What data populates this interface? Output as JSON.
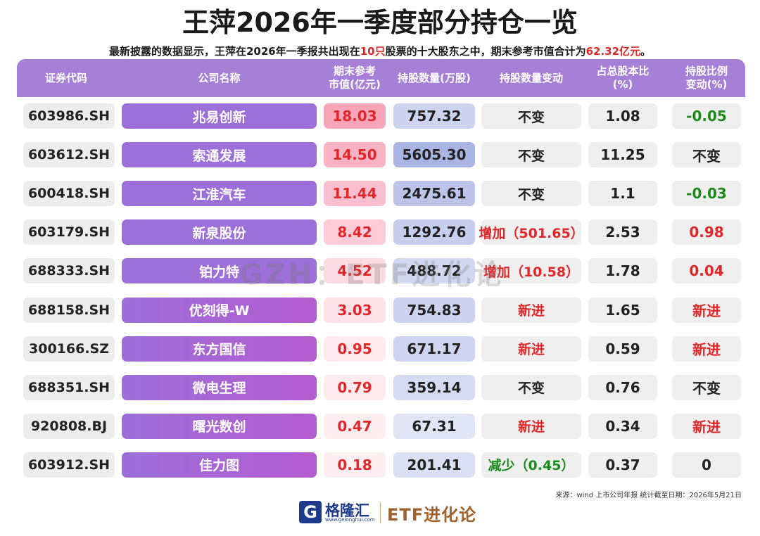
{
  "title": "王萍2026年一季度部分持仓一览",
  "subtitle": {
    "part1": "最新披露的数据显示，王萍在2026年一季报共出现在",
    "count": "10只",
    "part2": "股票的十大股东之中，期末参考市值合计为",
    "total": "62.32亿元",
    "part3": "。"
  },
  "columns": {
    "code": "证券代码",
    "name": "公司名称",
    "value": "期末参考\n市值(亿元)",
    "shares": "持股数量(万股)",
    "shares_change": "持股数量变动",
    "pct": "占总股本比\n(%)",
    "pct_change": "持股比例\n变动(%)"
  },
  "rows": [
    {
      "code": "603986.SH",
      "name": "兆易创新",
      "value": "18.03",
      "shares": "757.32",
      "shares_change": "不变",
      "pct": "1.08",
      "pct_change": "-0.05"
    },
    {
      "code": "603612.SH",
      "name": "索通发展",
      "value": "14.50",
      "shares": "5605.30",
      "shares_change": "不变",
      "pct": "11.25",
      "pct_change": "不变"
    },
    {
      "code": "600418.SH",
      "name": "江淮汽车",
      "value": "11.44",
      "shares": "2475.61",
      "shares_change": "不变",
      "pct": "1.1",
      "pct_change": "-0.03"
    },
    {
      "code": "603179.SH",
      "name": "新泉股份",
      "value": "8.42",
      "shares": "1292.76",
      "shares_change": "增加（501.65）",
      "pct": "2.53",
      "pct_change": "0.98"
    },
    {
      "code": "688333.SH",
      "name": "铂力特",
      "value": "4.52",
      "shares": "488.72",
      "shares_change": "增加（10.58）",
      "pct": "1.78",
      "pct_change": "0.04"
    },
    {
      "code": "688158.SH",
      "name": "优刻得-W",
      "value": "3.03",
      "shares": "754.83",
      "shares_change": "新进",
      "pct": "1.65",
      "pct_change": "新进"
    },
    {
      "code": "300166.SZ",
      "name": "东方国信",
      "value": "0.95",
      "shares": "671.17",
      "shares_change": "新进",
      "pct": "0.59",
      "pct_change": "新进"
    },
    {
      "code": "688351.SH",
      "name": "微电生理",
      "value": "0.79",
      "shares": "359.14",
      "shares_change": "不变",
      "pct": "0.76",
      "pct_change": "不变"
    },
    {
      "code": "920808.BJ",
      "name": "曙光数创",
      "value": "0.47",
      "shares": "67.31",
      "shares_change": "新进",
      "pct": "0.34",
      "pct_change": "新进"
    },
    {
      "code": "603912.SH",
      "name": "佳力图",
      "value": "0.18",
      "shares": "201.41",
      "shares_change": "减少（0.45）",
      "pct": "0.37",
      "pct_change": "0"
    }
  ],
  "watermark": "GZH：ETF进化论",
  "source": "来源：wind 上市公司年报  统计截至日期：2026年5月21日",
  "logo": {
    "icon": "G",
    "name": "格隆汇",
    "url": "www.gelonghui.com",
    "partner": "ETF进化论"
  },
  "colors": {
    "header": "#a580d6",
    "red": "#e0282a",
    "green": "#1b8a1b",
    "name_gradient_start": "#9d6fd8",
    "name_gradient_end": "#b35bd0"
  }
}
